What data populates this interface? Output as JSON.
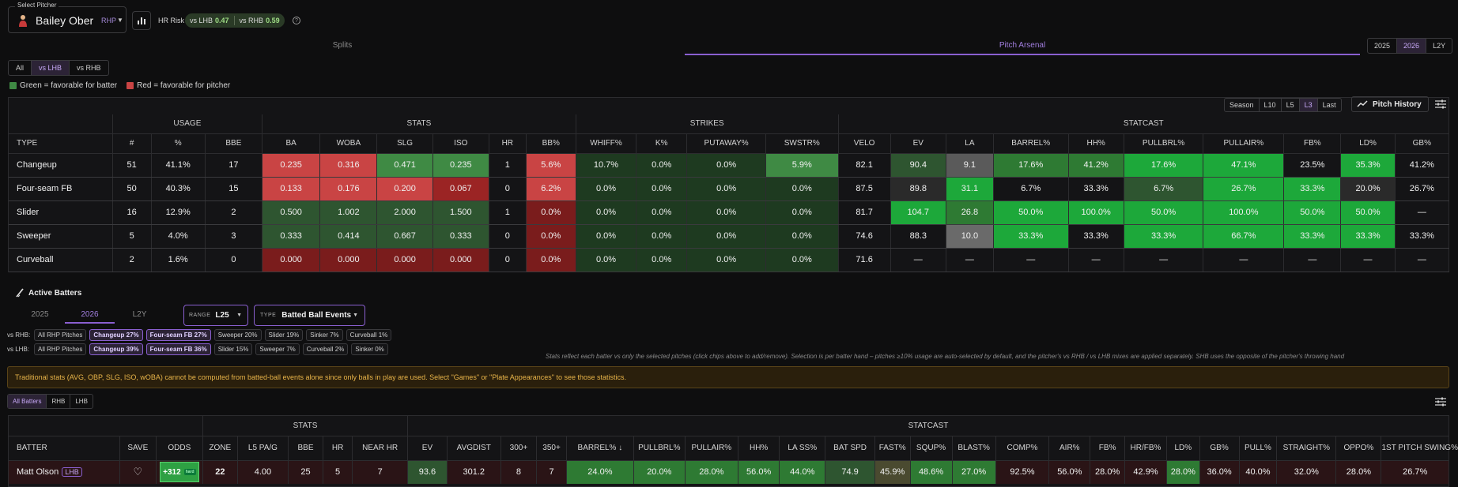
{
  "header": {
    "select_label": "Select Pitcher",
    "pitcher_name": "Bailey Ober",
    "pitcher_hand": "RHP",
    "hr_risk_label": "HR Risk",
    "vs_lhb_label": "vs LHB",
    "vs_lhb_value": "0.47",
    "vs_rhb_label": "vs RHB",
    "vs_rhb_value": "0.59"
  },
  "tabs": {
    "splits": "Splits",
    "arsenal": "Pitch Arsenal"
  },
  "seasons": [
    "2025",
    "2026",
    "L2Y"
  ],
  "splits_filter": [
    "All",
    "vs LHB",
    "vs RHB"
  ],
  "legend": {
    "green": "Green = favorable for batter",
    "red": "Red = favorable for pitcher"
  },
  "periods": [
    "Season",
    "L10",
    "L5",
    "L3",
    "Last"
  ],
  "pitch_history_label": "Pitch History",
  "arsenal": {
    "groups": [
      "USAGE",
      "STATS",
      "STRIKES",
      "STATCAST"
    ],
    "columns": [
      "TYPE",
      "#",
      "%",
      "BBE",
      "BA",
      "WOBA",
      "SLG",
      "ISO",
      "HR",
      "BB%",
      "WHIFF%",
      "K%",
      "PUTAWAY%",
      "SWSTR%",
      "VELO",
      "EV",
      "LA",
      "BARREL%",
      "HH%",
      "PULLBRL%",
      "PULLAIR%",
      "FB%",
      "LD%",
      "GB%"
    ],
    "rows": [
      [
        "Changeup",
        "51",
        "41.1%",
        "17",
        "0.235",
        "0.316",
        "0.471",
        "0.235",
        "1",
        "5.6%",
        "10.7%",
        "0.0%",
        "0.0%",
        "5.9%",
        "82.1",
        "90.4",
        "9.1",
        "17.6%",
        "41.2%",
        "17.6%",
        "47.1%",
        "23.5%",
        "35.3%",
        "41.2%"
      ],
      [
        "Four-seam FB",
        "50",
        "40.3%",
        "15",
        "0.133",
        "0.176",
        "0.200",
        "0.067",
        "0",
        "6.2%",
        "0.0%",
        "0.0%",
        "0.0%",
        "0.0%",
        "87.5",
        "89.8",
        "31.1",
        "6.7%",
        "33.3%",
        "6.7%",
        "26.7%",
        "33.3%",
        "20.0%",
        "26.7%"
      ],
      [
        "Slider",
        "16",
        "12.9%",
        "2",
        "0.500",
        "1.002",
        "2.000",
        "1.500",
        "1",
        "0.0%",
        "0.0%",
        "0.0%",
        "0.0%",
        "0.0%",
        "81.7",
        "104.7",
        "26.8",
        "50.0%",
        "100.0%",
        "50.0%",
        "100.0%",
        "50.0%",
        "50.0%",
        "—"
      ],
      [
        "Sweeper",
        "5",
        "4.0%",
        "3",
        "0.333",
        "0.414",
        "0.667",
        "0.333",
        "0",
        "0.0%",
        "0.0%",
        "0.0%",
        "0.0%",
        "0.0%",
        "74.6",
        "88.3",
        "10.0",
        "33.3%",
        "33.3%",
        "33.3%",
        "66.7%",
        "33.3%",
        "33.3%",
        "33.3%"
      ],
      [
        "Curveball",
        "2",
        "1.6%",
        "0",
        "0.000",
        "0.000",
        "0.000",
        "0.000",
        "0",
        "0.0%",
        "0.0%",
        "0.0%",
        "0.0%",
        "0.0%",
        "71.6",
        "—",
        "—",
        "—",
        "—",
        "—",
        "—",
        "—",
        "—",
        "—"
      ]
    ],
    "cell_colors": [
      [
        "",
        "",
        "",
        "",
        "#c94444",
        "#c94444",
        "#3f8a44",
        "#3f8a44",
        "",
        "#c94444",
        "#1e3a20",
        "#1e3a20",
        "#1e3a20",
        "#3f8a44",
        "",
        "#2e5530",
        "#5a5a5a",
        "#2e7a33",
        "#2e7a33",
        "#1da83a",
        "#1da83a",
        "",
        "#1da83a",
        ""
      ],
      [
        "",
        "",
        "",
        "",
        "#c94444",
        "#c94444",
        "#c94444",
        "#9b2424",
        "",
        "#c94444",
        "#1e3a20",
        "#1e3a20",
        "#1e3a20",
        "#1e3a20",
        "",
        "#2a2a2a",
        "#1da83a",
        "",
        "",
        "#2e5530",
        "#1da83a",
        "#1da83a",
        "#2a2a2a",
        ""
      ],
      [
        "",
        "",
        "",
        "",
        "#2e5530",
        "#2e5530",
        "#2e5530",
        "#2e5530",
        "",
        "#7a1c1c",
        "#1e3a20",
        "#1e3a20",
        "#1e3a20",
        "#1e3a20",
        "",
        "#1da83a",
        "#2e7a33",
        "#1da83a",
        "#1da83a",
        "#1da83a",
        "#1da83a",
        "#1da83a",
        "#1da83a",
        ""
      ],
      [
        "",
        "",
        "",
        "",
        "#2e5530",
        "#2e5530",
        "#2e5530",
        "#2e5530",
        "",
        "#7a1c1c",
        "#1e3a20",
        "#1e3a20",
        "#1e3a20",
        "#1e3a20",
        "",
        "",
        "#6a6a6a",
        "#1da83a",
        "",
        "#1da83a",
        "#1da83a",
        "#1da83a",
        "#1da83a",
        ""
      ],
      [
        "",
        "",
        "",
        "",
        "#7a1c1c",
        "#7a1c1c",
        "#7a1c1c",
        "#7a1c1c",
        "",
        "#7a1c1c",
        "#1e3a20",
        "#1e3a20",
        "#1e3a20",
        "#1e3a20",
        "",
        "",
        "",
        "",
        "",
        "",
        "",
        "",
        "",
        ""
      ]
    ]
  },
  "active_batters": {
    "title": "Active Batters",
    "years": [
      "2025",
      "2026",
      "L2Y"
    ],
    "range_key": "RANGE",
    "range_value": "L25",
    "type_key": "TYPE",
    "type_value": "Batted Ball Events",
    "rhb_label": "vs RHB:",
    "rhb_chips": [
      "All RHP Pitches",
      "Changeup 27%",
      "Four-seam FB 27%",
      "Sweeper 20%",
      "Slider 19%",
      "Sinker 7%",
      "Curveball 1%"
    ],
    "lhb_label": "vs LHB:",
    "lhb_chips": [
      "All RHP Pitches",
      "Changeup 39%",
      "Four-seam FB 36%",
      "Slider 15%",
      "Sweeper 7%",
      "Curveball 2%",
      "Sinker 0%"
    ],
    "note": "Stats reflect each batter vs only the selected pitches (click chips above to add/remove). Selection is per batter hand – pitches ≥10% usage are auto-selected by default, and the pitcher's vs RHB / vs LHB mixes are applied separately. SHB uses the opposite of the pitcher's throwing hand",
    "warning": "Traditional stats (AVG, OBP, SLG, ISO, wOBA) cannot be computed from batted-ball events alone since only balls in play are used. Select \"Games\" or \"Plate Appearances\" to see those statistics.",
    "batter_filter": [
      "All Batters",
      "RHB",
      "LHB"
    ]
  },
  "batters_table": {
    "groups": [
      "STATS",
      "STATCAST"
    ],
    "columns": [
      "BATTER",
      "SAVE",
      "ODDS",
      "ZONE",
      "L5 PA/G",
      "BBE",
      "HR",
      "NEAR HR",
      "EV",
      "AVGDIST",
      "300+",
      "350+",
      "BARREL% ↓",
      "PULLBRL%",
      "PULLAIR%",
      "HH%",
      "LA SS%",
      "BAT SPD",
      "FAST%",
      "SQUP%",
      "BLAST%",
      "COMP%",
      "AIR%",
      "FB%",
      "HR/FB%",
      "LD%",
      "GB%",
      "PULL%",
      "STRAIGHT%",
      "OPPO%",
      "1ST PITCH SWING%"
    ],
    "row": {
      "name": "Matt Olson",
      "hand": "LHB",
      "odds": "+312",
      "odds_tag": "hard",
      "values": [
        "22",
        "4.00",
        "25",
        "5",
        "7",
        "93.6",
        "301.2",
        "8",
        "7",
        "24.0%",
        "20.0%",
        "28.0%",
        "56.0%",
        "44.0%",
        "74.9",
        "45.9%",
        "48.6%",
        "27.0%",
        "92.5%",
        "56.0%",
        "28.0%",
        "42.9%",
        "28.0%",
        "36.0%",
        "40.0%",
        "32.0%",
        "28.0%",
        "26.7%"
      ],
      "colors": [
        "",
        "",
        "",
        "",
        "",
        "#2e5530",
        "",
        "",
        "",
        "#2e7a33",
        "#2e7a33",
        "#2e7a33",
        "#2e7a33",
        "#2e7a33",
        "#2e5530",
        "#4a4a30",
        "#2e7a33",
        "#2e7a33",
        "",
        "",
        "",
        "",
        "#2e7a33",
        "",
        "",
        "",
        "",
        ""
      ]
    }
  }
}
